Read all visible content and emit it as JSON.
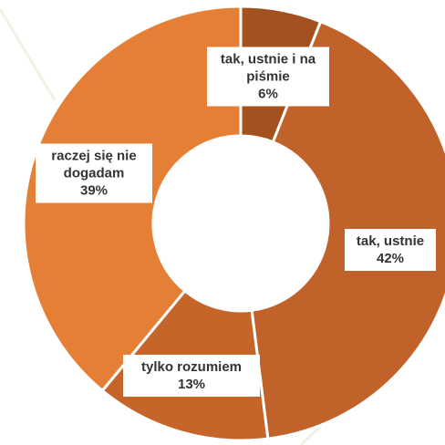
{
  "chart_data": {
    "type": "donut",
    "categories": [
      "tak, ustnie i na piśmie",
      "tak, ustnie",
      "tylko rozumiem",
      "raczej się nie dogadam"
    ],
    "values": [
      6,
      42,
      13,
      39
    ],
    "value_labels": [
      "6%",
      "42%",
      "13%",
      "39%"
    ],
    "colors": [
      "#a3521f",
      "#c0622a",
      "#c5652a",
      "#e67f36"
    ]
  }
}
